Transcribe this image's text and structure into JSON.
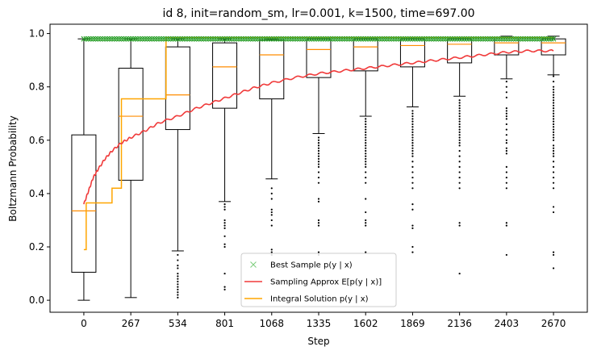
{
  "chart_data": {
    "type": "box",
    "title": "id 8, init=random_sm, lr=0.001, k=1500, time=697.00",
    "xlabel": "Step",
    "ylabel": "Boltzmann Probability",
    "xlim": [
      -0.72,
      10.72
    ],
    "ylim": [
      -0.045,
      1.035
    ],
    "x_ticks": [
      "0",
      "267",
      "534",
      "801",
      "1068",
      "1335",
      "1602",
      "1869",
      "2136",
      "2403",
      "2670"
    ],
    "y_ticks": [
      0.0,
      0.2,
      0.4,
      0.6,
      0.8,
      1.0
    ],
    "y_tick_labels": [
      "0.0",
      "0.2",
      "0.4",
      "0.6",
      "0.8",
      "1.0"
    ],
    "grid": false,
    "legend_position": "lower-center",
    "boxplots": [
      {
        "step": "0",
        "whisker_low": 0.0,
        "q1": 0.105,
        "median": 0.335,
        "q3": 0.62,
        "whisker_high": 0.98,
        "outliers": []
      },
      {
        "step": "267",
        "whisker_low": 0.01,
        "q1": 0.45,
        "median": 0.69,
        "q3": 0.87,
        "whisker_high": 0.98,
        "outliers": []
      },
      {
        "step": "534",
        "whisker_low": 0.185,
        "q1": 0.64,
        "median": 0.77,
        "q3": 0.95,
        "whisker_high": 0.98,
        "outliers": [
          0.17,
          0.15,
          0.13,
          0.12,
          0.1,
          0.09,
          0.08,
          0.07,
          0.06,
          0.05,
          0.04,
          0.03,
          0.02,
          0.01
        ]
      },
      {
        "step": "801",
        "whisker_low": 0.37,
        "q1": 0.72,
        "median": 0.875,
        "q3": 0.965,
        "whisker_high": 0.98,
        "outliers": [
          0.36,
          0.35,
          0.34,
          0.3,
          0.29,
          0.28,
          0.27,
          0.24,
          0.21,
          0.2,
          0.1,
          0.05,
          0.04
        ]
      },
      {
        "step": "1068",
        "whisker_low": 0.455,
        "q1": 0.755,
        "median": 0.92,
        "q3": 0.975,
        "whisker_high": 0.98,
        "outliers": [
          0.42,
          0.4,
          0.38,
          0.34,
          0.33,
          0.32,
          0.3,
          0.28,
          0.19,
          0.18,
          0.17,
          0.07
        ]
      },
      {
        "step": "1335",
        "whisker_low": 0.625,
        "q1": 0.835,
        "median": 0.94,
        "q3": 0.98,
        "whisker_high": 0.985,
        "outliers": [
          0.61,
          0.6,
          0.59,
          0.58,
          0.57,
          0.56,
          0.55,
          0.54,
          0.53,
          0.52,
          0.51,
          0.5,
          0.48,
          0.46,
          0.44,
          0.38,
          0.37,
          0.3,
          0.29,
          0.28,
          0.18,
          0.17
        ]
      },
      {
        "step": "1602",
        "whisker_low": 0.69,
        "q1": 0.86,
        "median": 0.95,
        "q3": 0.98,
        "whisker_high": 0.985,
        "outliers": [
          0.68,
          0.67,
          0.66,
          0.65,
          0.64,
          0.63,
          0.62,
          0.61,
          0.6,
          0.59,
          0.58,
          0.57,
          0.56,
          0.55,
          0.54,
          0.53,
          0.52,
          0.51,
          0.5,
          0.48,
          0.46,
          0.44,
          0.38,
          0.33,
          0.3,
          0.29,
          0.28,
          0.18
        ]
      },
      {
        "step": "1869",
        "whisker_low": 0.725,
        "q1": 0.875,
        "median": 0.955,
        "q3": 0.98,
        "whisker_high": 0.985,
        "outliers": [
          0.71,
          0.7,
          0.69,
          0.68,
          0.67,
          0.66,
          0.65,
          0.64,
          0.63,
          0.62,
          0.61,
          0.6,
          0.59,
          0.58,
          0.57,
          0.56,
          0.55,
          0.54,
          0.52,
          0.5,
          0.48,
          0.46,
          0.44,
          0.42,
          0.36,
          0.34,
          0.28,
          0.27,
          0.2,
          0.18
        ]
      },
      {
        "step": "2136",
        "whisker_low": 0.765,
        "q1": 0.89,
        "median": 0.96,
        "q3": 0.98,
        "whisker_high": 0.985,
        "outliers": [
          0.75,
          0.74,
          0.73,
          0.72,
          0.71,
          0.7,
          0.69,
          0.68,
          0.67,
          0.66,
          0.65,
          0.64,
          0.63,
          0.62,
          0.61,
          0.6,
          0.59,
          0.58,
          0.56,
          0.54,
          0.52,
          0.5,
          0.48,
          0.46,
          0.44,
          0.42,
          0.29,
          0.28,
          0.1
        ]
      },
      {
        "step": "2403",
        "whisker_low": 0.83,
        "q1": 0.92,
        "median": 0.965,
        "q3": 0.985,
        "whisker_high": 0.99,
        "outliers": [
          0.82,
          0.8,
          0.78,
          0.76,
          0.72,
          0.71,
          0.7,
          0.69,
          0.68,
          0.66,
          0.64,
          0.62,
          0.6,
          0.59,
          0.57,
          0.56,
          0.55,
          0.5,
          0.48,
          0.46,
          0.44,
          0.42,
          0.29,
          0.28,
          0.17
        ]
      },
      {
        "step": "2670",
        "whisker_low": 0.845,
        "q1": 0.92,
        "median": 0.965,
        "q3": 0.98,
        "whisker_high": 0.99,
        "outliers": [
          0.84,
          0.82,
          0.8,
          0.79,
          0.78,
          0.77,
          0.76,
          0.75,
          0.74,
          0.73,
          0.72,
          0.71,
          0.7,
          0.69,
          0.68,
          0.67,
          0.66,
          0.65,
          0.64,
          0.63,
          0.62,
          0.61,
          0.6,
          0.58,
          0.57,
          0.56,
          0.55,
          0.54,
          0.52,
          0.5,
          0.48,
          0.46,
          0.44,
          0.42,
          0.35,
          0.33,
          0.18,
          0.17,
          0.12
        ]
      }
    ],
    "series": [
      {
        "name": "Best Sample $p(y\\mid x)$",
        "legend_label": "Best Sample p(y | x)",
        "kind": "markers",
        "color": "#2ca02c",
        "value": 0.98
      },
      {
        "name": "Sampling Approx $E[p(y\\mid x)]$",
        "legend_label": "Sampling Approx E[p(y | x)]",
        "kind": "line",
        "color": "#f03a3a",
        "points": [
          [
            0.0,
            0.36
          ],
          [
            0.1,
            0.41
          ],
          [
            0.2,
            0.46
          ],
          [
            0.3,
            0.49
          ],
          [
            0.45,
            0.53
          ],
          [
            0.6,
            0.56
          ],
          [
            0.8,
            0.59
          ],
          [
            1.0,
            0.61
          ],
          [
            1.3,
            0.635
          ],
          [
            1.6,
            0.665
          ],
          [
            2.0,
            0.69
          ],
          [
            2.4,
            0.72
          ],
          [
            2.8,
            0.745
          ],
          [
            3.2,
            0.77
          ],
          [
            3.6,
            0.795
          ],
          [
            4.0,
            0.815
          ],
          [
            4.5,
            0.835
          ],
          [
            5.0,
            0.85
          ],
          [
            5.5,
            0.86
          ],
          [
            6.0,
            0.87
          ],
          [
            6.5,
            0.88
          ],
          [
            7.0,
            0.89
          ],
          [
            7.5,
            0.9
          ],
          [
            8.0,
            0.91
          ],
          [
            8.5,
            0.92
          ],
          [
            9.0,
            0.93
          ],
          [
            9.5,
            0.935
          ],
          [
            10.0,
            0.935
          ]
        ]
      },
      {
        "name": "Integral Solution $p(y\\mid x)$",
        "legend_label": "Integral Solution p(y | x)",
        "kind": "step",
        "color": "#ffa500",
        "points": [
          [
            0.0,
            0.19
          ],
          [
            0.05,
            0.19
          ],
          [
            0.05,
            0.365
          ],
          [
            0.6,
            0.365
          ],
          [
            0.6,
            0.42
          ],
          [
            0.8,
            0.42
          ],
          [
            0.8,
            0.755
          ],
          [
            1.75,
            0.755
          ],
          [
            1.75,
            0.985
          ],
          [
            10.0,
            0.985
          ]
        ]
      }
    ]
  }
}
